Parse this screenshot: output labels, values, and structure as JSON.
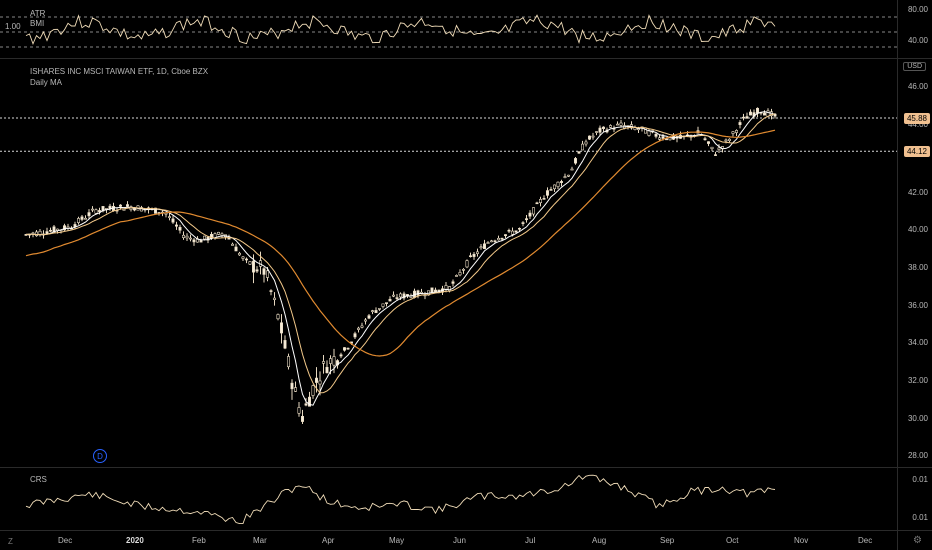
{
  "top_pane": {
    "indicator_1": "ATR",
    "indicator_2": "BMI",
    "left_value": "1.00",
    "axis_labels": [
      "80.00",
      "40.00"
    ]
  },
  "main_pane": {
    "title": "ISHARES INC MSCI TAIWAN ETF, 1D, Cboe BZX",
    "study": "Daily MA",
    "currency": "USD",
    "y_labels": [
      "46.00",
      "44.00",
      "42.00",
      "40.00",
      "38.00",
      "36.00",
      "34.00",
      "32.00",
      "30.00",
      "28.00"
    ],
    "price_tags": [
      {
        "value": "45.88",
        "color": "#f0c090"
      },
      {
        "value": "44.12",
        "color": "#f0c090"
      }
    ],
    "event_marker": "D"
  },
  "bottom_pane": {
    "indicator": "CRS",
    "axis_labels": [
      "0.01",
      "0.01"
    ]
  },
  "x_axis": [
    "Dec",
    "2020",
    "Feb",
    "Mar",
    "Apr",
    "May",
    "Jun",
    "Jul",
    "Aug",
    "Sep",
    "Oct",
    "Nov",
    "Dec"
  ],
  "icons": {
    "left_corner": "Z",
    "right_corner": "gear"
  },
  "chart_data": {
    "type": "candlestick",
    "title": "ISHARES INC MSCI TAIWAN ETF, 1D, Cboe BZX",
    "ylim": [
      27.5,
      47.5
    ],
    "reference_lines": [
      45.88,
      44.12
    ],
    "x_ticks": [
      "Dec",
      "2020",
      "Feb",
      "Mar",
      "Apr",
      "May",
      "Jun",
      "Jul",
      "Aug",
      "Sep",
      "Oct",
      "Nov",
      "Dec"
    ],
    "monthly_close_approx": [
      {
        "period": "Dec",
        "value": 39.8
      },
      {
        "period": "2020",
        "value": 41.0
      },
      {
        "period": "Feb",
        "value": 39.3
      },
      {
        "period": "Mar",
        "value": 36.5
      },
      {
        "period": "Apr",
        "value": 33.0
      },
      {
        "period": "May",
        "value": 36.4
      },
      {
        "period": "Jun",
        "value": 37.2
      },
      {
        "period": "Jul",
        "value": 40.0
      },
      {
        "period": "Aug",
        "value": 45.5
      },
      {
        "period": "Sep",
        "value": 45.0
      },
      {
        "period": "Oct",
        "value": 44.6
      },
      {
        "period": "Oct-end",
        "value": 46.2
      }
    ]
  }
}
